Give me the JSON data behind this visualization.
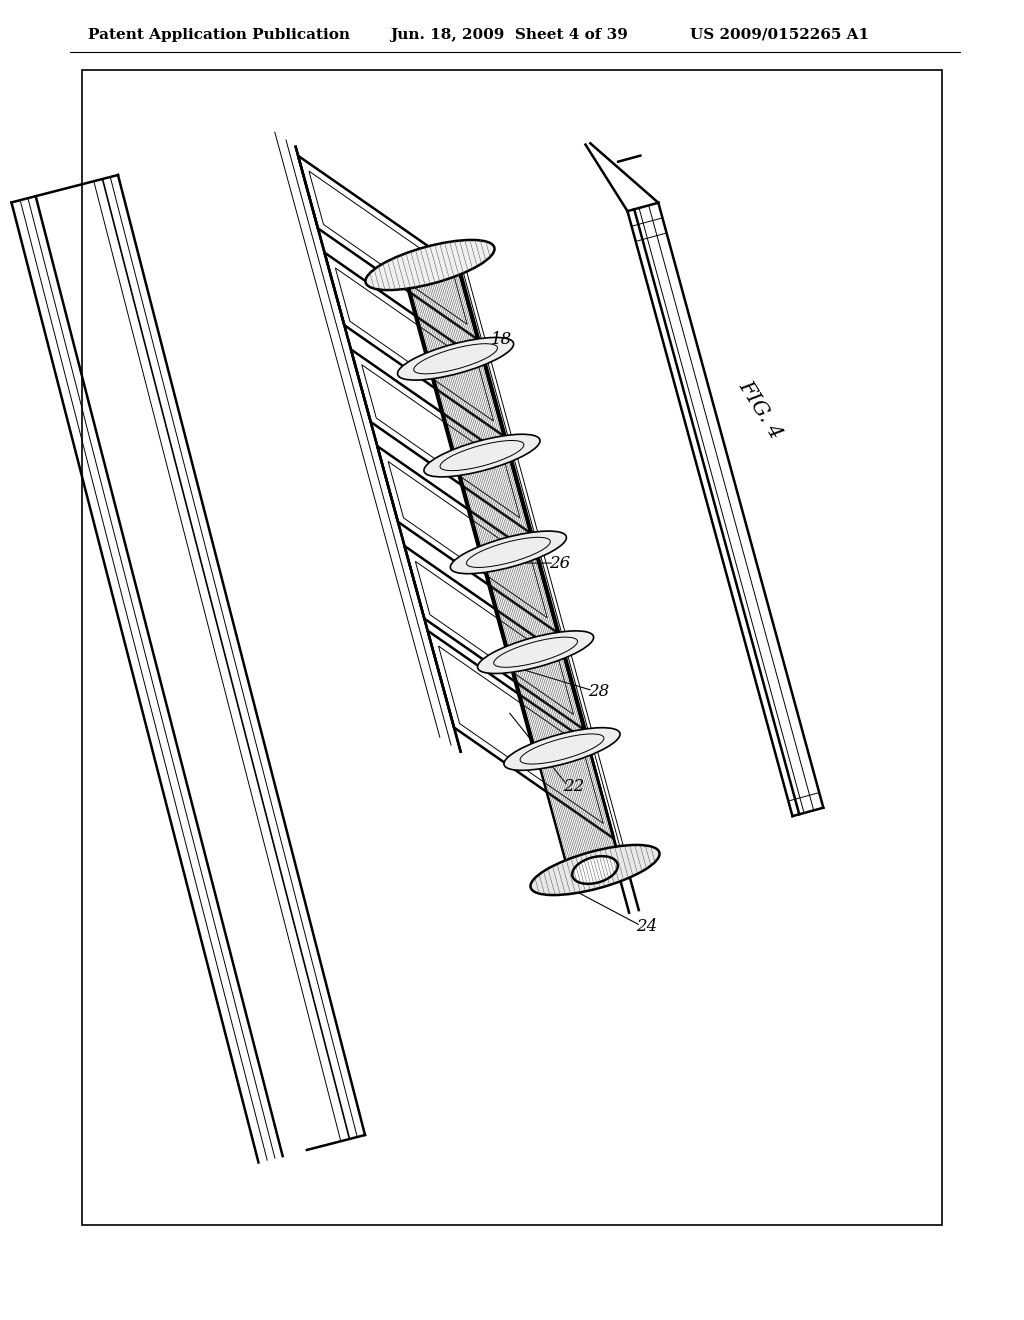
{
  "bg_color": "#ffffff",
  "header_text_left": "Patent Application Publication",
  "header_text_mid": "Jun. 18, 2009  Sheet 4 of 39",
  "header_text_right": "US 2009/0152265 A1",
  "header_fontsize": 11,
  "figure_label": "FIG. 4",
  "label_18": "18",
  "label_26": "26",
  "label_28": "28",
  "label_24": "24",
  "label_22": "22",
  "lw_main": 1.8,
  "lw_med": 1.2,
  "lw_thin": 0.7,
  "lw_hatch": 0.35
}
